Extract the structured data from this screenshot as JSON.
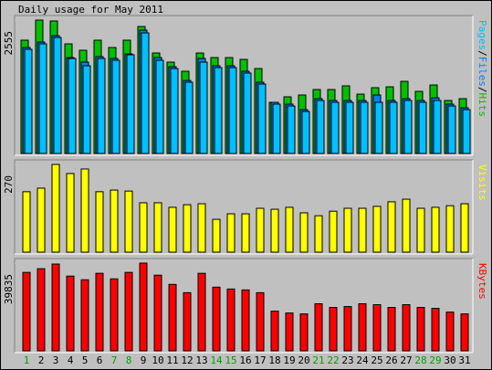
{
  "chart_data": [
    {
      "type": "bar",
      "title": "Daily usage for May 2011",
      "legend_separator": "/",
      "ylim": [
        0,
        2555
      ],
      "yticks": [
        2555
      ],
      "series": [
        {
          "name": "Hits",
          "color": "#00c000",
          "values": [
            2170,
            2555,
            2538,
            2100,
            1977,
            2170,
            2030,
            2170,
            2432,
            1925,
            1750,
            1575,
            1925,
            1837,
            1837,
            1802,
            1627,
            980,
            1085,
            1120,
            1225,
            1225,
            1295,
            1137,
            1260,
            1277,
            1382,
            1190,
            1312,
            1015,
            1050
          ]
        },
        {
          "name": "Files",
          "color": "#0080ff",
          "values": [
            2030,
            2135,
            2257,
            1837,
            1750,
            1855,
            1820,
            1907,
            2362,
            1837,
            1662,
            1400,
            1820,
            1680,
            1680,
            1575,
            1365,
            980,
            945,
            840,
            1050,
            1015,
            1015,
            1015,
            1120,
            1015,
            1050,
            1015,
            1067,
            945,
            875
          ]
        },
        {
          "name": "Pages",
          "color": "#00c0ff",
          "values": [
            1995,
            2100,
            2222,
            1820,
            1680,
            1820,
            1785,
            1890,
            2310,
            1785,
            1627,
            1365,
            1750,
            1645,
            1645,
            1540,
            1330,
            945,
            910,
            805,
            1015,
            980,
            980,
            980,
            980,
            980,
            1015,
            980,
            1015,
            910,
            840
          ]
        }
      ]
    },
    {
      "type": "bar",
      "ylim": [
        0,
        270
      ],
      "yticks": [
        270
      ],
      "series": [
        {
          "name": "Visits",
          "color": "#ffff00",
          "values": [
            186,
            197,
            270,
            242,
            256,
            186,
            191,
            188,
            152,
            152,
            138,
            146,
            149,
            101,
            118,
            118,
            135,
            132,
            138,
            121,
            112,
            126,
            135,
            135,
            141,
            155,
            163,
            135,
            138,
            143,
            149
          ]
        }
      ]
    },
    {
      "type": "bar",
      "ylim": [
        0,
        39835
      ],
      "yticks": [
        39835
      ],
      "categories": [
        "1",
        "2",
        "3",
        "4",
        "5",
        "6",
        "7",
        "8",
        "9",
        "10",
        "11",
        "12",
        "13",
        "14",
        "15",
        "16",
        "17",
        "18",
        "19",
        "20",
        "21",
        "22",
        "23",
        "24",
        "25",
        "26",
        "27",
        "28",
        "29",
        "30",
        "31"
      ],
      "category_colors": [
        "#00a000",
        "#000000",
        "#000000",
        "#000000",
        "#000000",
        "#000000",
        "#00a000",
        "#00a000",
        "#000000",
        "#000000",
        "#000000",
        "#000000",
        "#000000",
        "#00a000",
        "#00a000",
        "#000000",
        "#000000",
        "#000000",
        "#000000",
        "#000000",
        "#00a000",
        "#00a000",
        "#000000",
        "#000000",
        "#000000",
        "#000000",
        "#000000",
        "#00a000",
        "#00a000",
        "#000000",
        "#000000"
      ],
      "series": [
        {
          "name": "KBytes",
          "color": "#ff0000",
          "values": [
            35620,
            37300,
            39415,
            33940,
            32260,
            35200,
            32680,
            35620,
            39835,
            34360,
            30170,
            26400,
            35200,
            28910,
            28070,
            27650,
            26400,
            18020,
            17180,
            16760,
            21370,
            19700,
            20110,
            21370,
            20950,
            19700,
            20950,
            19700,
            19280,
            17600,
            16760
          ]
        }
      ]
    }
  ]
}
